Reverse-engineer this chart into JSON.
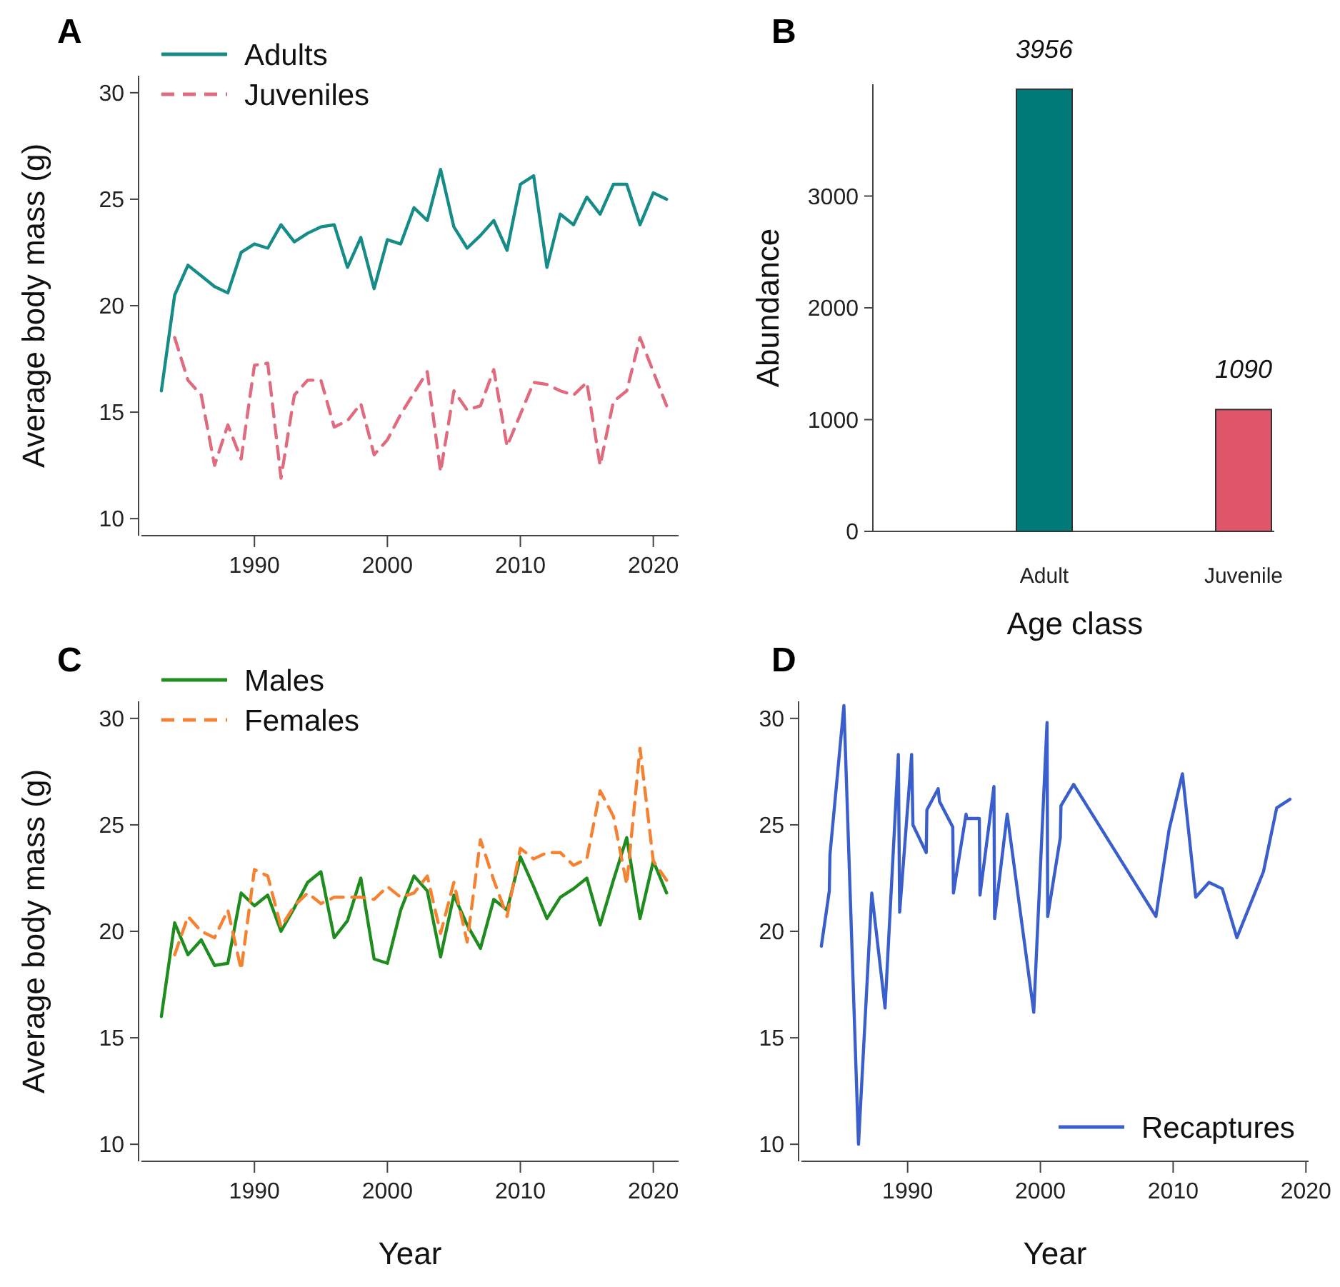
{
  "chart_data": [
    {
      "type": "line",
      "title": "A",
      "ylabel": "Average body mass (g)",
      "xlim": [
        1981.5,
        2021.9
      ],
      "ylim": [
        9.2,
        30.8
      ],
      "xticks": [
        1990,
        2000,
        2010,
        2020
      ],
      "yticks": [
        10,
        15,
        20,
        25,
        30
      ],
      "legend": "top left",
      "x": [
        1983,
        1984,
        1985,
        1986,
        1987,
        1988,
        1989,
        1990,
        1991,
        1992,
        1993,
        1994,
        1995,
        1996,
        1997,
        1998,
        1999,
        2000,
        2001,
        2002,
        2003,
        2004,
        2005,
        2006,
        2007,
        2008,
        2009,
        2010,
        2011,
        2012,
        2013,
        2014,
        2015,
        2016,
        2017,
        2018,
        2019,
        2020,
        2021
      ],
      "series": [
        {
          "name": "Adults",
          "color": "#168c88",
          "line_style": "solid",
          "values": [
            16.0,
            20.5,
            21.9,
            21.4,
            20.9,
            20.6,
            22.5,
            22.9,
            22.7,
            23.8,
            23.0,
            23.4,
            23.7,
            23.8,
            21.8,
            23.2,
            20.8,
            23.1,
            22.9,
            24.6,
            24.0,
            26.4,
            23.7,
            22.7,
            23.3,
            24.0,
            22.6,
            25.7,
            26.1,
            21.8,
            24.3,
            23.8,
            25.1,
            24.3,
            25.7,
            25.7,
            23.8,
            25.3,
            25.0
          ]
        },
        {
          "name": "Juveniles",
          "color": "#e06b7f",
          "line_style": "dashed",
          "values": [
            null,
            18.5,
            16.5,
            15.8,
            12.5,
            14.4,
            12.8,
            17.2,
            17.3,
            11.9,
            15.8,
            16.5,
            16.5,
            14.3,
            14.6,
            15.4,
            13.0,
            13.7,
            14.9,
            15.9,
            16.9,
            12.2,
            16.0,
            15.1,
            15.3,
            17.0,
            13.4,
            14.9,
            16.4,
            16.3,
            16.0,
            15.8,
            16.4,
            12.5,
            15.5,
            16.0,
            18.5,
            16.9,
            15.3
          ]
        }
      ]
    },
    {
      "type": "bar",
      "title": "B",
      "xlabel": "Age class",
      "ylabel": "Abundance",
      "categories": [
        "Adult",
        "Juvenile"
      ],
      "values": [
        3956,
        1090
      ],
      "colors": [
        "#007b77",
        "#e0566b"
      ],
      "ylim": [
        0,
        4000
      ],
      "yticks": [
        0,
        1000,
        2000,
        3000
      ],
      "data_labels": true
    },
    {
      "type": "line",
      "title": "C",
      "xlabel": "Year",
      "ylabel": "Average body mass (g)",
      "xlim": [
        1981.5,
        2021.9
      ],
      "ylim": [
        9.2,
        30.8
      ],
      "xticks": [
        1990,
        2000,
        2010,
        2020
      ],
      "yticks": [
        10,
        15,
        20,
        25,
        30
      ],
      "legend": "top left",
      "x": [
        1983,
        1984,
        1985,
        1986,
        1987,
        1988,
        1989,
        1990,
        1991,
        1992,
        1993,
        1994,
        1995,
        1996,
        1997,
        1998,
        1999,
        2000,
        2001,
        2002,
        2003,
        2004,
        2005,
        2006,
        2007,
        2008,
        2009,
        2010,
        2011,
        2012,
        2013,
        2014,
        2015,
        2016,
        2017,
        2018,
        2019,
        2020,
        2021
      ],
      "series": [
        {
          "name": "Males",
          "color": "#1e8c1e",
          "line_style": "solid",
          "values": [
            16.0,
            20.4,
            18.9,
            19.6,
            18.4,
            18.5,
            21.8,
            21.2,
            21.7,
            20.0,
            21.1,
            22.3,
            22.8,
            19.7,
            20.5,
            22.5,
            18.7,
            18.5,
            21.0,
            22.6,
            21.9,
            18.8,
            21.7,
            20.3,
            19.2,
            21.5,
            21.0,
            23.5,
            22.1,
            20.6,
            21.6,
            22.0,
            22.5,
            20.3,
            22.4,
            24.4,
            20.6,
            23.3,
            21.8
          ]
        },
        {
          "name": "Females",
          "color": "#f58231",
          "line_style": "dashed",
          "values": [
            null,
            18.9,
            20.7,
            20.0,
            19.7,
            21.0,
            18.2,
            22.9,
            22.6,
            20.2,
            21.2,
            21.8,
            21.3,
            21.6,
            21.6,
            21.6,
            21.5,
            22.1,
            21.6,
            21.8,
            22.6,
            19.9,
            22.3,
            19.5,
            24.3,
            22.4,
            20.7,
            23.9,
            23.4,
            23.7,
            23.7,
            23.1,
            23.4,
            26.6,
            25.4,
            22.2,
            28.6,
            23.3,
            22.4
          ]
        }
      ]
    },
    {
      "type": "line",
      "title": "D",
      "xlabel": "Year",
      "xlim": [
        1982,
        2020.2
      ],
      "ylim": [
        9.2,
        30.8
      ],
      "xticks": [
        1990,
        2000,
        2010,
        2020
      ],
      "yticks": [
        10,
        15,
        20,
        25,
        30
      ],
      "legend": "bottom right",
      "series": [
        {
          "name": "Recaptures",
          "color": "#3a5fcd",
          "line_style": "solid",
          "x": [
            1983.5,
            1984.1,
            1984.15,
            1985.2,
            1986.3,
            1987.3,
            1988.3,
            1989.3,
            1989.4,
            1990.3,
            1990.4,
            1991.4,
            1991.45,
            1992.3,
            1992.4,
            1993.4,
            1993.45,
            1994.4,
            1994.45,
            1995.4,
            1995.45,
            1996.5,
            1996.55,
            1997.5,
            1999.5,
            2000.5,
            2000.55,
            2001.5,
            2001.55,
            2002.5,
            2008.7,
            2009.7,
            2010.7,
            2011.7,
            2012.7,
            2013.7,
            2014.8,
            2016.8,
            2017.8,
            2018.8
          ],
          "values": [
            19.3,
            21.9,
            23.6,
            30.6,
            10.0,
            21.8,
            16.4,
            28.3,
            20.9,
            28.3,
            25.0,
            23.7,
            25.7,
            26.7,
            26.1,
            24.9,
            21.8,
            25.5,
            25.3,
            25.3,
            21.7,
            26.8,
            20.6,
            25.5,
            16.2,
            29.8,
            20.7,
            24.4,
            25.9,
            26.9,
            20.7,
            24.8,
            27.4,
            21.6,
            22.3,
            22.0,
            19.7,
            22.8,
            25.8,
            26.2
          ]
        }
      ]
    }
  ]
}
